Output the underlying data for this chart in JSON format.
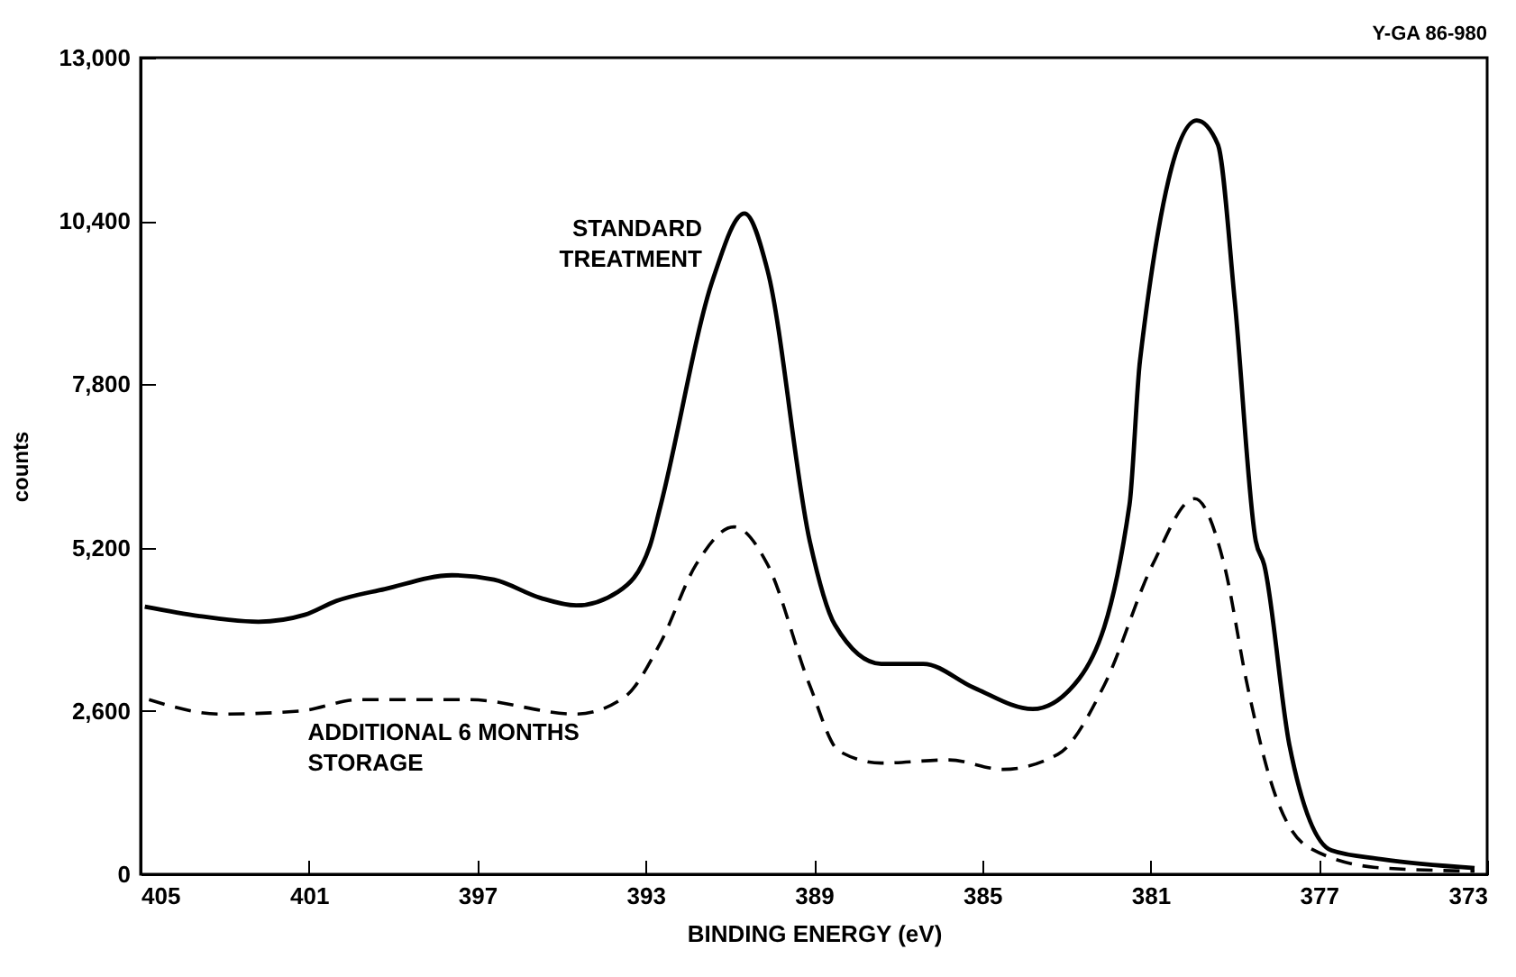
{
  "chart_data": {
    "type": "line",
    "xlabel": "BINDING ENERGY (eV)",
    "ylabel": "counts",
    "xlim": [
      405,
      373
    ],
    "xticks": [
      405,
      401,
      397,
      393,
      389,
      385,
      381,
      377,
      373
    ],
    "ylim": [
      0,
      13000
    ],
    "yticks": [
      0,
      {
        "value": 2600,
        "label": "2,600"
      },
      {
        "value": 5200,
        "label": "5,200"
      },
      {
        "value": 7800,
        "label": "7,800"
      },
      {
        "value": 10400,
        "label": "10,400"
      },
      {
        "value": 13000,
        "label": "13,000"
      }
    ],
    "marker": "none",
    "series": [
      {
        "color": "#000000",
        "line_style": "solid",
        "x": [
          404.9,
          403.6,
          402.2,
          401.1,
          400.35,
          399.2,
          397.6,
          396.6,
          395.5,
          394.65,
          393.65,
          392.9,
          392.65,
          391.4,
          390.65,
          390.1,
          389.1,
          388.5,
          387.4,
          386.4,
          385.2,
          383.8,
          382.7,
          381.5,
          381.25,
          379.9,
          379.4,
          379.0,
          378.5,
          378.3,
          377.7,
          376.7,
          375.5,
          373.3
        ],
        "values": [
          4260,
          4110,
          4020,
          4130,
          4350,
          4540,
          4760,
          4690,
          4400,
          4280,
          4500,
          5220,
          5850,
          9470,
          10520,
          9610,
          5310,
          3970,
          3350,
          3350,
          2970,
          2630,
          3110,
          5880,
          8180,
          12000,
          11620,
          9140,
          5310,
          4930,
          2060,
          380,
          240,
          100
        ]
      },
      {
        "color": "#000000",
        "line_style": "dashed",
        "x": [
          404.8,
          403.1,
          401.2,
          399.8,
          397.2,
          394.65,
          393.5,
          392.65,
          391.8,
          390.9,
          390.1,
          389.1,
          388.4,
          387.4,
          385.8,
          384.5,
          383.2,
          382.1,
          380.95,
          379.95,
          379.25,
          378.7,
          378.1,
          377.25,
          375.5,
          373.3
        ],
        "values": [
          2780,
          2550,
          2600,
          2780,
          2780,
          2550,
          2820,
          3680,
          4930,
          5530,
          4930,
          3010,
          1960,
          1770,
          1820,
          1670,
          1910,
          3010,
          4930,
          5980,
          4930,
          3010,
          1390,
          430,
          100,
          50
        ]
      }
    ],
    "annotations": [
      {
        "text": "STANDARD TREATMENT",
        "x": 391.4,
        "y": 9470
      },
      {
        "text": "ADDITIONAL 6 MONTHS STORAGE",
        "x": 401.2,
        "y": 2600
      },
      "Y-GA 86-980"
    ]
  }
}
